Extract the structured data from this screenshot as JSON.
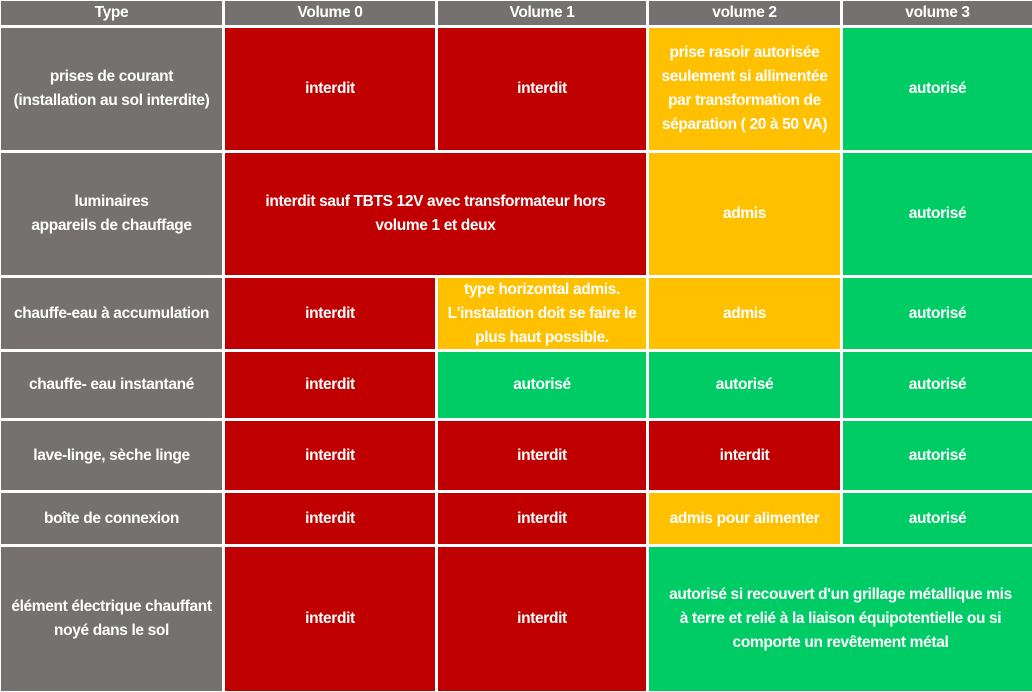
{
  "colors": {
    "header": "#767171",
    "interdit": "#c00000",
    "conditionnel": "#ffc000",
    "autorise": "#00cc66"
  },
  "headers": [
    "Type",
    "Volume 0",
    "Volume 1",
    "volume 2",
    "volume 3"
  ],
  "rows": [
    {
      "type": "prises de courant\n(installation au sol interdite)",
      "v0": "interdit",
      "v1": "interdit",
      "v2": "prise rasoir autorisée\nseulement si allimentée\npar transformation de\nséparation ( 20 à 50 VA)",
      "v3": "autorisé"
    },
    {
      "type": "luminaires\nappareils de chauffage",
      "v01": "interdit  sauf TBTS 12V avec transformateur hors\nvolume 1 et deux",
      "v2": "admis",
      "v3": "autorisé"
    },
    {
      "type": "chauffe-eau à accumulation",
      "v0": "interdit",
      "v1": "type horizontal admis.\nL'instalation doit se faire le\nplus haut possible.",
      "v2": "admis",
      "v3": "autorisé"
    },
    {
      "type": "chauffe- eau instantané",
      "v0": "interdit",
      "v1": "autorisé",
      "v2": "autorisé",
      "v3": "autorisé"
    },
    {
      "type": "lave-linge, sèche linge",
      "v0": "interdit",
      "v1": "interdit",
      "v2": "interdit",
      "v3": "autorisé"
    },
    {
      "type": "boîte de connexion",
      "v0": "interdit",
      "v1": "interdit",
      "v2": "admis pour alimenter",
      "v3": "autorisé"
    },
    {
      "type": "élément électrique chauffant\nnoyé dans le sol",
      "v0": "interdit",
      "v1": "interdit",
      "v23": "autorisé si recouvert d'un grillage métallique mis\nà terre et relié à la liaison équipotentielle ou si\ncomporte un revêtement métal"
    }
  ]
}
